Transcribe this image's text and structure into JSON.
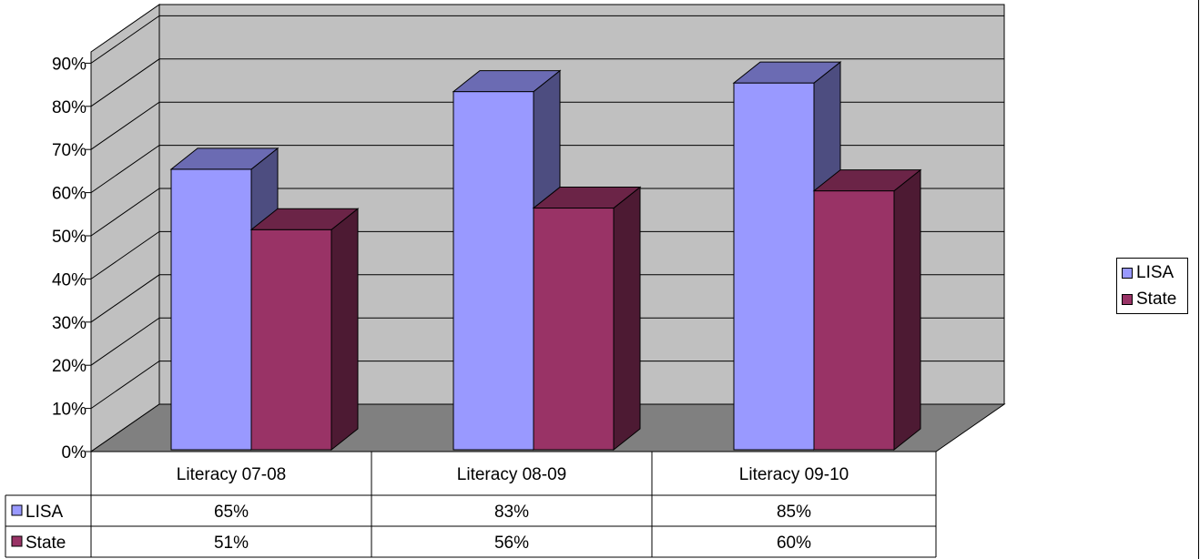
{
  "chart_data": {
    "type": "bar",
    "variant": "3d-clustered-column-with-data-table",
    "categories": [
      "Literacy 07-08",
      "Literacy 08-09",
      "Literacy 09-10"
    ],
    "series": [
      {
        "name": "LISA",
        "values": [
          65,
          83,
          85
        ],
        "labels": [
          "65%",
          "83%",
          "85%"
        ],
        "color": "#9999FF"
      },
      {
        "name": "State",
        "values": [
          51,
          56,
          60
        ],
        "labels": [
          "51%",
          "56%",
          "60%"
        ],
        "color": "#993366"
      }
    ],
    "yticks": [
      "0%",
      "10%",
      "20%",
      "30%",
      "40%",
      "50%",
      "60%",
      "70%",
      "80%",
      "90%"
    ],
    "ylim": [
      0,
      90
    ],
    "grid": true,
    "legend": "right",
    "wall_color": "#C0C0C0",
    "floor_color": "#808080"
  }
}
